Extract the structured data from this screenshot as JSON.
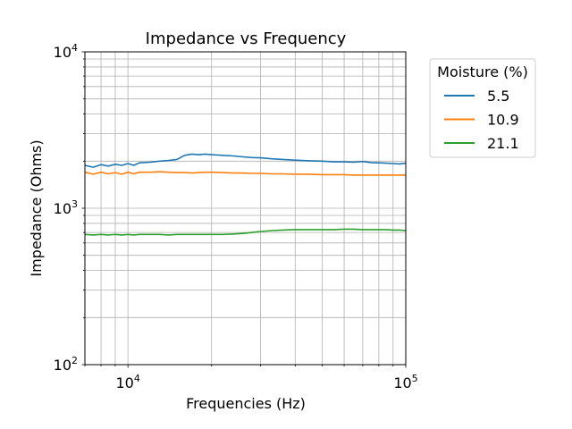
{
  "chart_data": {
    "type": "line",
    "title": "Impedance vs Frequency",
    "xlabel": "Frequencies (Hz)",
    "ylabel": "Impedance (Ohms)",
    "xscale": "log",
    "yscale": "log",
    "xlim": [
      7000,
      100000
    ],
    "ylim": [
      100,
      10000
    ],
    "x_ticks": [
      {
        "value": 10000,
        "base": "10",
        "exp": "4"
      },
      {
        "value": 100000,
        "base": "10",
        "exp": "5"
      }
    ],
    "y_ticks": [
      {
        "value": 100,
        "base": "10",
        "exp": "2"
      },
      {
        "value": 1000,
        "base": "10",
        "exp": "3"
      },
      {
        "value": 10000,
        "base": "10",
        "exp": "4"
      }
    ],
    "grid": true,
    "legend": {
      "title": "Moisture (%)",
      "placement": "outside-right-top"
    },
    "series": [
      {
        "name": "5.5",
        "color": "#1f77b4",
        "x": [
          7000,
          7500,
          8000,
          8500,
          9000,
          9500,
          10000,
          10500,
          11000,
          12000,
          13000,
          14000,
          15000,
          16000,
          17000,
          18000,
          19000,
          20000,
          22000,
          24000,
          26000,
          28000,
          30000,
          33000,
          36000,
          40000,
          45000,
          50000,
          55000,
          60000,
          65000,
          70000,
          75000,
          80000,
          85000,
          90000,
          95000,
          100000
        ],
        "values": [
          1880,
          1830,
          1900,
          1860,
          1910,
          1880,
          1930,
          1880,
          1950,
          1970,
          2000,
          2020,
          2050,
          2180,
          2220,
          2200,
          2220,
          2200,
          2180,
          2160,
          2130,
          2110,
          2100,
          2070,
          2050,
          2030,
          2010,
          2000,
          1980,
          1980,
          1970,
          1990,
          1960,
          1950,
          1940,
          1930,
          1920,
          1940
        ]
      },
      {
        "name": "10.9",
        "color": "#ff7f0e",
        "x": [
          7000,
          7500,
          8000,
          8500,
          9000,
          9500,
          10000,
          10500,
          11000,
          12000,
          13000,
          14000,
          15000,
          16000,
          17000,
          18000,
          19000,
          20000,
          22000,
          24000,
          26000,
          28000,
          30000,
          33000,
          36000,
          40000,
          45000,
          50000,
          55000,
          60000,
          65000,
          70000,
          75000,
          80000,
          85000,
          90000,
          95000,
          100000
        ],
        "values": [
          1700,
          1650,
          1700,
          1660,
          1690,
          1650,
          1700,
          1660,
          1700,
          1700,
          1710,
          1700,
          1690,
          1690,
          1680,
          1690,
          1700,
          1700,
          1690,
          1680,
          1680,
          1670,
          1670,
          1660,
          1660,
          1650,
          1650,
          1640,
          1640,
          1640,
          1630,
          1630,
          1630,
          1630,
          1630,
          1630,
          1630,
          1630
        ]
      },
      {
        "name": "21.1",
        "color": "#2ca02c",
        "x": [
          7000,
          7500,
          8000,
          8500,
          9000,
          9500,
          10000,
          10500,
          11000,
          12000,
          13000,
          14000,
          15000,
          16000,
          17000,
          18000,
          19000,
          20000,
          22000,
          24000,
          26000,
          28000,
          30000,
          33000,
          36000,
          40000,
          45000,
          50000,
          55000,
          60000,
          65000,
          70000,
          75000,
          80000,
          85000,
          90000,
          95000,
          100000
        ],
        "values": [
          680,
          675,
          680,
          675,
          680,
          675,
          680,
          675,
          680,
          680,
          680,
          675,
          680,
          680,
          680,
          680,
          680,
          680,
          680,
          685,
          690,
          700,
          710,
          720,
          725,
          730,
          730,
          730,
          730,
          735,
          735,
          730,
          730,
          730,
          730,
          725,
          725,
          720
        ]
      }
    ]
  }
}
